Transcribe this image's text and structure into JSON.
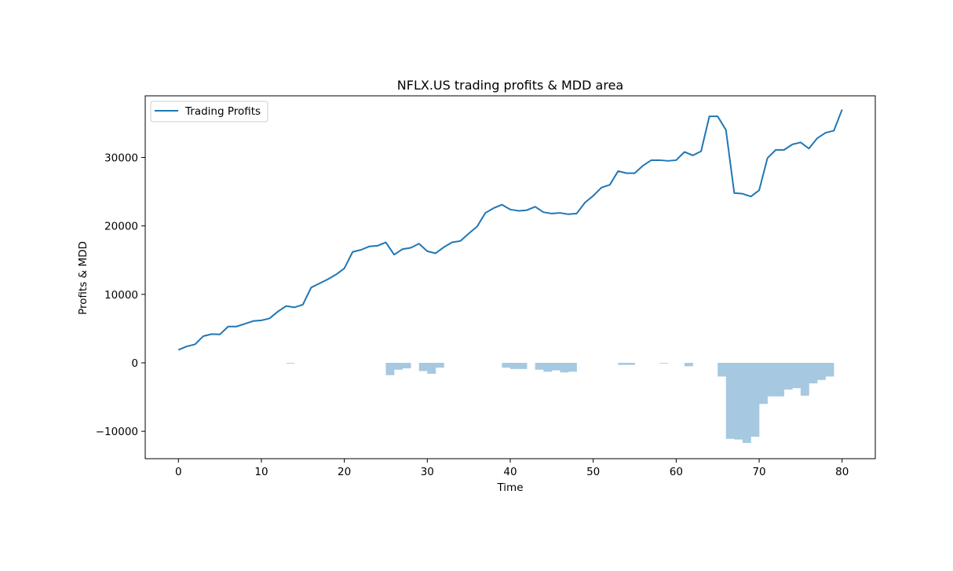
{
  "chart_data": {
    "type": "line",
    "title": "NFLX.US trading profits & MDD area",
    "xlabel": "Time",
    "ylabel": "Profits & MDD",
    "xlim": [
      -4,
      84
    ],
    "ylim": [
      -14000,
      39000
    ],
    "xticks": [
      0,
      10,
      20,
      30,
      40,
      50,
      60,
      70,
      80
    ],
    "yticks": [
      -10000,
      0,
      10000,
      20000,
      30000
    ],
    "ytick_labels": [
      "−10000",
      "0",
      "10000",
      "20000",
      "30000"
    ],
    "grid": false,
    "legend": {
      "location": "upper-left",
      "entries": [
        "Trading Profits"
      ]
    },
    "series": [
      {
        "name": "Trading Profits",
        "kind": "line",
        "color": "#1f77b4",
        "x": [
          0,
          1,
          2,
          3,
          4,
          5,
          6,
          7,
          8,
          9,
          10,
          11,
          12,
          13,
          14,
          15,
          16,
          17,
          18,
          19,
          20,
          21,
          22,
          23,
          24,
          25,
          26,
          27,
          28,
          29,
          30,
          31,
          32,
          33,
          34,
          35,
          36,
          37,
          38,
          39,
          40,
          41,
          42,
          43,
          44,
          45,
          46,
          47,
          48,
          49,
          50,
          51,
          52,
          53,
          54,
          55,
          56,
          57,
          58,
          59,
          60,
          61,
          62,
          63,
          64,
          65,
          66,
          67,
          68,
          69,
          70,
          71,
          72,
          73,
          74,
          75,
          76,
          77,
          78,
          79,
          80
        ],
        "values": [
          1900,
          2400,
          2700,
          3900,
          4200,
          4150,
          5300,
          5300,
          5700,
          6100,
          6200,
          6500,
          7500,
          8300,
          8100,
          8500,
          11000,
          11600,
          12200,
          12900,
          13800,
          16200,
          16500,
          17000,
          17100,
          17600,
          15800,
          16600,
          16800,
          17400,
          16300,
          16000,
          16900,
          17600,
          17800,
          18900,
          19900,
          21900,
          22600,
          23100,
          22400,
          22200,
          22300,
          22800,
          22000,
          21800,
          21900,
          21700,
          21800,
          23400,
          24400,
          25600,
          26000,
          28000,
          27700,
          27700,
          28800,
          29600,
          29600,
          29500,
          29600,
          30800,
          30300,
          30900,
          36000,
          36000,
          34000,
          24800,
          24700,
          24300,
          25200,
          29900,
          31100,
          31100,
          31900,
          32200,
          31300,
          32800,
          33600,
          33900,
          37000
        ]
      },
      {
        "name": "MDD",
        "kind": "area-step",
        "color": "#a6c8e0",
        "x": [
          0,
          1,
          2,
          3,
          4,
          5,
          6,
          7,
          8,
          9,
          10,
          11,
          12,
          13,
          14,
          15,
          16,
          17,
          18,
          19,
          20,
          21,
          22,
          23,
          24,
          25,
          26,
          27,
          28,
          29,
          30,
          31,
          32,
          33,
          34,
          35,
          36,
          37,
          38,
          39,
          40,
          41,
          42,
          43,
          44,
          45,
          46,
          47,
          48,
          49,
          50,
          51,
          52,
          53,
          54,
          55,
          56,
          57,
          58,
          59,
          60,
          61,
          62,
          63,
          64,
          65,
          66,
          67,
          68,
          69,
          70,
          71,
          72,
          73,
          74,
          75,
          76,
          77,
          78,
          79,
          80
        ],
        "values": [
          0,
          0,
          0,
          0,
          0,
          0,
          0,
          0,
          0,
          0,
          0,
          0,
          0,
          -100,
          0,
          0,
          0,
          0,
          0,
          0,
          0,
          0,
          0,
          0,
          0,
          -1800,
          -1000,
          -800,
          0,
          -1200,
          -1600,
          -700,
          0,
          0,
          0,
          0,
          0,
          0,
          0,
          -700,
          -900,
          -900,
          0,
          -1000,
          -1300,
          -1100,
          -1400,
          -1300,
          0,
          0,
          0,
          0,
          0,
          -300,
          -300,
          0,
          0,
          0,
          -100,
          0,
          0,
          -500,
          0,
          0,
          0,
          -2000,
          -11100,
          -11200,
          -11700,
          -10800,
          -6000,
          -4900,
          -4900,
          -3900,
          -3700,
          -4800,
          -3000,
          -2500,
          -2000,
          0,
          0
        ]
      }
    ]
  }
}
